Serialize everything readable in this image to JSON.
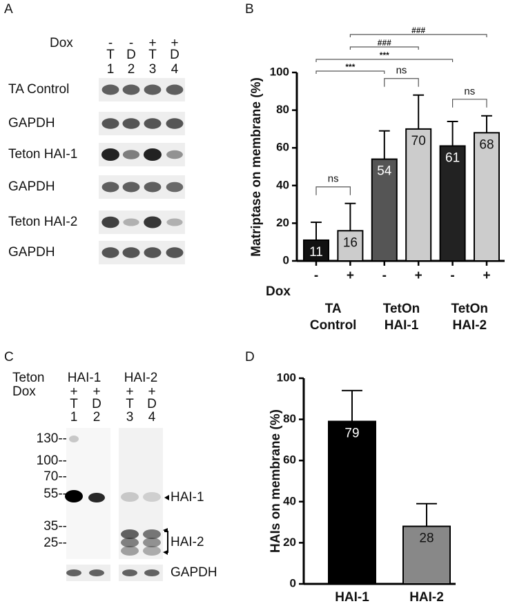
{
  "panel_labels": [
    "A",
    "B",
    "C",
    "D"
  ],
  "blot_a": {
    "dox_label": "Dox",
    "lanes": [
      {
        "dox": "-",
        "label": "T",
        "num": "1"
      },
      {
        "dox": "-",
        "label": "D",
        "num": "2"
      },
      {
        "dox": "+",
        "label": "T",
        "num": "3"
      },
      {
        "dox": "+",
        "label": "D",
        "num": "4"
      }
    ],
    "rows": [
      "TA Control",
      "GAPDH",
      "Teton HAI-1",
      "GAPDH",
      "Teton HAI-2",
      "GAPDH"
    ]
  },
  "blot_c": {
    "teton_label": "Teton",
    "dox_label": "Dox",
    "groups": [
      "HAI-1",
      "HAI-2"
    ],
    "lanes": [
      {
        "dox": "+",
        "label": "T",
        "num": "1"
      },
      {
        "dox": "+",
        "label": "D",
        "num": "2"
      },
      {
        "dox": "+",
        "label": "T",
        "num": "3"
      },
      {
        "dox": "+",
        "label": "D",
        "num": "4"
      }
    ],
    "markers": [
      "130--",
      "100--",
      "70--",
      "55--",
      "35--",
      "25--"
    ],
    "bands": [
      "HAI-1",
      "HAI-2",
      "GAPDH"
    ]
  },
  "chart_data": [
    {
      "type": "bar",
      "ylabel": "Matriptase on membrane (%)",
      "xlabel": "Dox",
      "categories": [
        "-",
        "+",
        "-",
        "+",
        "-",
        "+"
      ],
      "group_labels": [
        [
          "TA",
          "Control"
        ],
        [
          "TetOn",
          "HAI-1"
        ],
        [
          "TetOn",
          "HAI-2"
        ]
      ],
      "values": [
        11,
        16,
        54,
        70,
        61,
        68
      ],
      "errors": [
        9.5,
        14.5,
        15,
        18,
        13,
        9
      ],
      "colors": [
        "#111111",
        "#cccccc",
        "#555555",
        "#cccccc",
        "#222222",
        "#cccccc"
      ],
      "ylim": [
        0,
        100
      ],
      "yticks": [
        0,
        20,
        40,
        60,
        80,
        100
      ],
      "brackets": [
        {
          "from": 0,
          "to": 1,
          "label": "ns"
        },
        {
          "from": 2,
          "to": 3,
          "label": "ns"
        },
        {
          "from": 4,
          "to": 5,
          "label": "ns"
        },
        {
          "from": 0,
          "to": 2,
          "label": "***"
        },
        {
          "from": 0,
          "to": 4,
          "label": "***"
        },
        {
          "from": 1,
          "to": 3,
          "label": "###"
        },
        {
          "from": 1,
          "to": 5,
          "label": "###"
        }
      ]
    },
    {
      "type": "bar",
      "ylabel": "HAIs on membrane (%)",
      "categories": [
        "HAI-1",
        "HAI-2"
      ],
      "values": [
        79,
        28
      ],
      "errors": [
        15,
        11
      ],
      "colors": [
        "#000000",
        "#888888"
      ],
      "ylim": [
        0,
        100
      ],
      "yticks": [
        0,
        20,
        40,
        60,
        80,
        100
      ]
    }
  ]
}
